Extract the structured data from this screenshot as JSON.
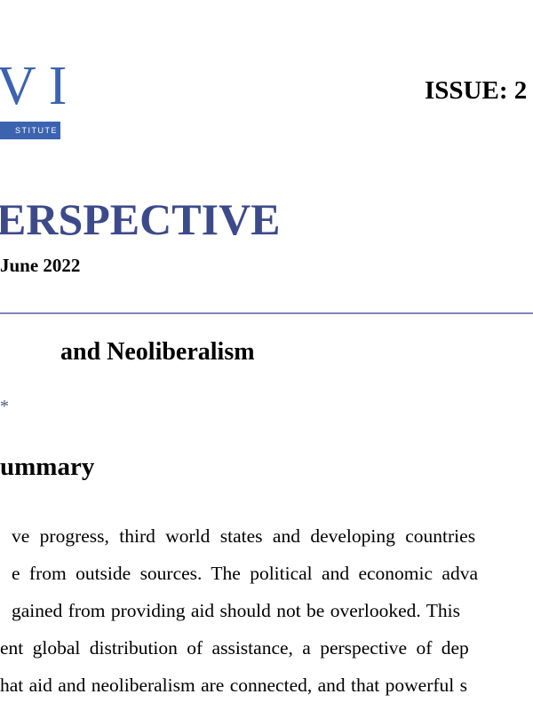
{
  "header": {
    "logo": {
      "letters": "VI",
      "tagline": "STITUTE",
      "color": "#3c63b0"
    },
    "issue": "ISSUE: 2",
    "series_title": "ERSPECTIVE",
    "date": "June 2022"
  },
  "article": {
    "title": "and Neoliberalism",
    "author_mark": "*",
    "section_heading": "ummary",
    "lines": [
      "ve progress, third world states and developing countries",
      "e from outside sources. The political and economic adva",
      "gained from providing aid should not be overlooked. This",
      "ent global distribution of assistance, a perspective of dep",
      "hat aid and neoliberalism are connected, and that powerful s"
    ]
  },
  "colors": {
    "title": "#3d4a8a",
    "rule": "#7f84b8"
  }
}
